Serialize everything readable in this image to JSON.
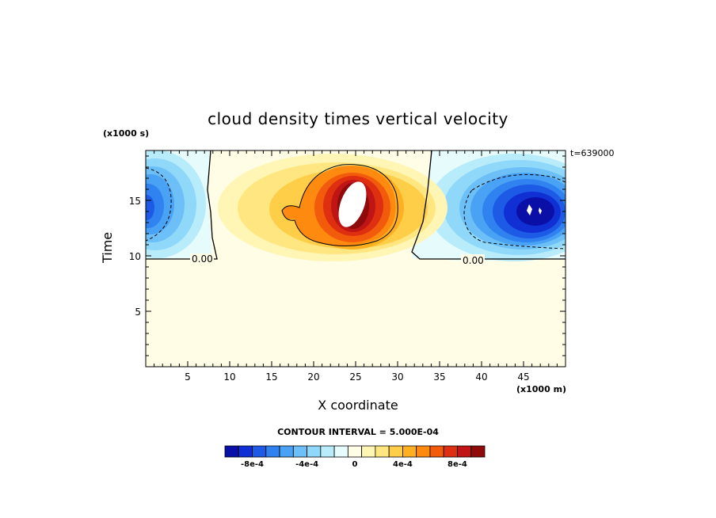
{
  "chart_data": {
    "type": "heatmap",
    "title": "cloud density times vertical velocity",
    "xlabel": "X coordinate",
    "ylabel": "Time",
    "x_unit": "(x1000 m)",
    "y_unit": "(x1000 s)",
    "timestamp": "t=639000",
    "xlim": [
      0,
      50
    ],
    "ylim": [
      0,
      19.5
    ],
    "x_ticks": [
      5,
      10,
      15,
      20,
      25,
      30,
      35,
      40,
      45
    ],
    "y_ticks": [
      5,
      10,
      15
    ],
    "zero_contour_label": "0.00",
    "contour_interval_label": "CONTOUR INTERVAL = 5.000E-04",
    "colorbar": {
      "colors": [
        "#0a0fa8",
        "#1130d4",
        "#1d5ae6",
        "#2f82ef",
        "#4aa2f5",
        "#6cc0f7",
        "#8fd8f9",
        "#b8ecfb",
        "#e6fbfb",
        "#fffde6",
        "#fff6b5",
        "#ffe680",
        "#ffce48",
        "#ffb020",
        "#ff8a10",
        "#f25a0c",
        "#de2f10",
        "#c01515",
        "#8f0a0a"
      ],
      "tick_labels": [
        "-8e-4",
        "-4e-4",
        "0",
        "4e-4",
        "8e-4"
      ]
    },
    "features": [
      {
        "name": "positive core",
        "x": 25.5,
        "y": 14.5,
        "peak": "1e-3"
      },
      {
        "name": "negative core east",
        "x": 45.5,
        "y": 14.5,
        "peak": "-1e-3"
      },
      {
        "name": "negative core west",
        "x": 0,
        "y": 15,
        "peak": "-8e-4"
      }
    ]
  }
}
